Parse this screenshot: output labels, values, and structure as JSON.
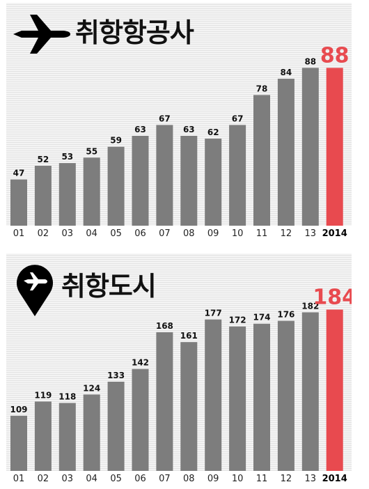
{
  "colors": {
    "bar": "#7d7d7d",
    "highlight": "#e84a4f",
    "label": "#111111"
  },
  "chart_data": [
    {
      "type": "bar",
      "title": "취항항공사",
      "icon": "airplane-icon",
      "categories": [
        "01",
        "02",
        "03",
        "04",
        "05",
        "06",
        "07",
        "08",
        "09",
        "10",
        "11",
        "12",
        "13",
        "2014"
      ],
      "values": [
        47,
        52,
        53,
        55,
        59,
        63,
        67,
        63,
        62,
        67,
        78,
        84,
        88,
        88
      ],
      "highlight_index": 13,
      "ylim": [
        30,
        95
      ],
      "grid": false
    },
    {
      "type": "bar",
      "title": "취항도시",
      "icon": "location-pin-airplane-icon",
      "categories": [
        "01",
        "02",
        "03",
        "04",
        "05",
        "06",
        "07",
        "08",
        "09",
        "10",
        "11",
        "12",
        "13",
        "2014"
      ],
      "values": [
        109,
        119,
        118,
        124,
        133,
        142,
        168,
        161,
        177,
        172,
        174,
        176,
        182,
        184
      ],
      "highlight_index": 13,
      "ylim": [
        70,
        195
      ],
      "grid": false
    }
  ]
}
